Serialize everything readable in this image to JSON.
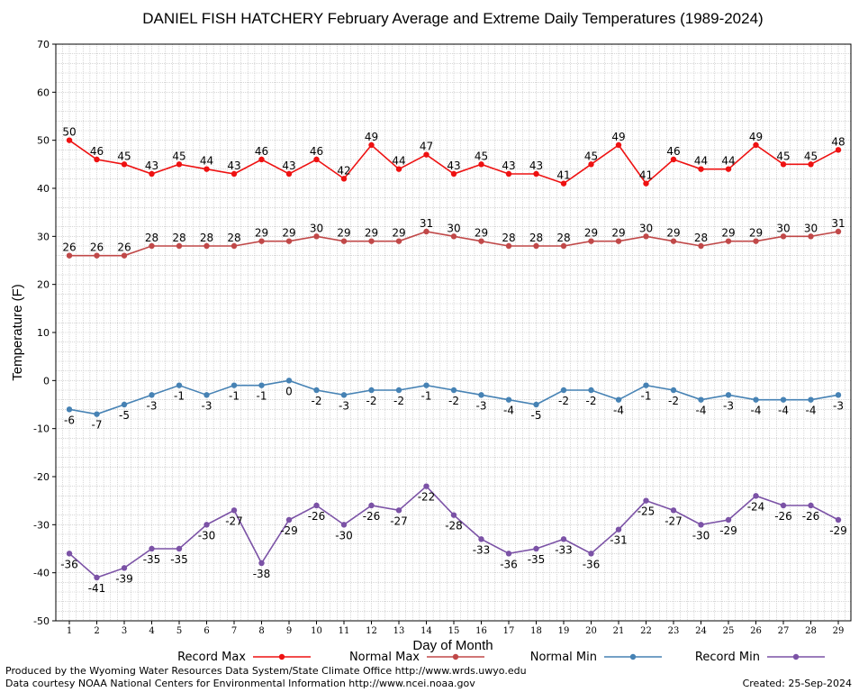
{
  "chart_data": {
    "type": "line",
    "title": "DANIEL FISH HATCHERY February Average and Extreme Daily Temperatures (1989-2024)",
    "xlabel": "Day of Month",
    "ylabel": "Temperature (F)",
    "ylim": [
      -50,
      70
    ],
    "yticks": [
      70,
      60,
      50,
      40,
      30,
      20,
      10,
      0,
      -10,
      -20,
      -30,
      -40,
      -50
    ],
    "x": [
      1,
      2,
      3,
      4,
      5,
      6,
      7,
      8,
      9,
      10,
      11,
      12,
      13,
      14,
      15,
      16,
      17,
      18,
      19,
      20,
      21,
      22,
      23,
      24,
      25,
      26,
      27,
      28,
      29
    ],
    "grid": true,
    "legend_position": "bottom",
    "series": [
      {
        "name": "Record Max",
        "color": "#ee1111",
        "label_position": "above",
        "values": [
          50,
          46,
          45,
          43,
          45,
          44,
          43,
          46,
          43,
          46,
          42,
          49,
          44,
          47,
          43,
          45,
          43,
          43,
          41,
          45,
          49,
          41,
          46,
          44,
          44,
          49,
          45,
          45,
          48
        ]
      },
      {
        "name": "Normal Max",
        "color": "#c04848",
        "label_position": "above",
        "values": [
          26,
          26,
          26,
          28,
          28,
          28,
          28,
          29,
          29,
          30,
          29,
          29,
          29,
          31,
          30,
          29,
          28,
          28,
          28,
          29,
          29,
          30,
          29,
          28,
          29,
          29,
          30,
          30,
          31
        ]
      },
      {
        "name": "Normal Min",
        "color": "#4682b4",
        "label_position": "below",
        "values": [
          -6,
          -7,
          -5,
          -3,
          -1,
          -3,
          -1,
          -1,
          0,
          -2,
          -3,
          -2,
          -2,
          -1,
          -2,
          -3,
          -4,
          -5,
          -2,
          -2,
          -4,
          -1,
          -2,
          -4,
          -3,
          -4,
          -4,
          -4,
          -3
        ]
      },
      {
        "name": "Record Min",
        "color": "#7b52a6",
        "label_position": "below",
        "values": [
          -36,
          -41,
          -39,
          -35,
          -35,
          -30,
          -27,
          -38,
          -29,
          -26,
          -30,
          -26,
          -27,
          -22,
          -28,
          -33,
          -36,
          -35,
          -33,
          -36,
          -31,
          -25,
          -27,
          -30,
          -29,
          -24,
          -26,
          -26,
          -29
        ]
      }
    ]
  },
  "footer": {
    "line1": "Produced by the Wyoming Water Resources Data System/State Climate Office http://www.wrds.uwyo.edu",
    "line2": "Data courtesy NOAA National Centers for Environmental Information http://www.ncei.noaa.gov",
    "created": "Created:  25-Sep-2024"
  }
}
